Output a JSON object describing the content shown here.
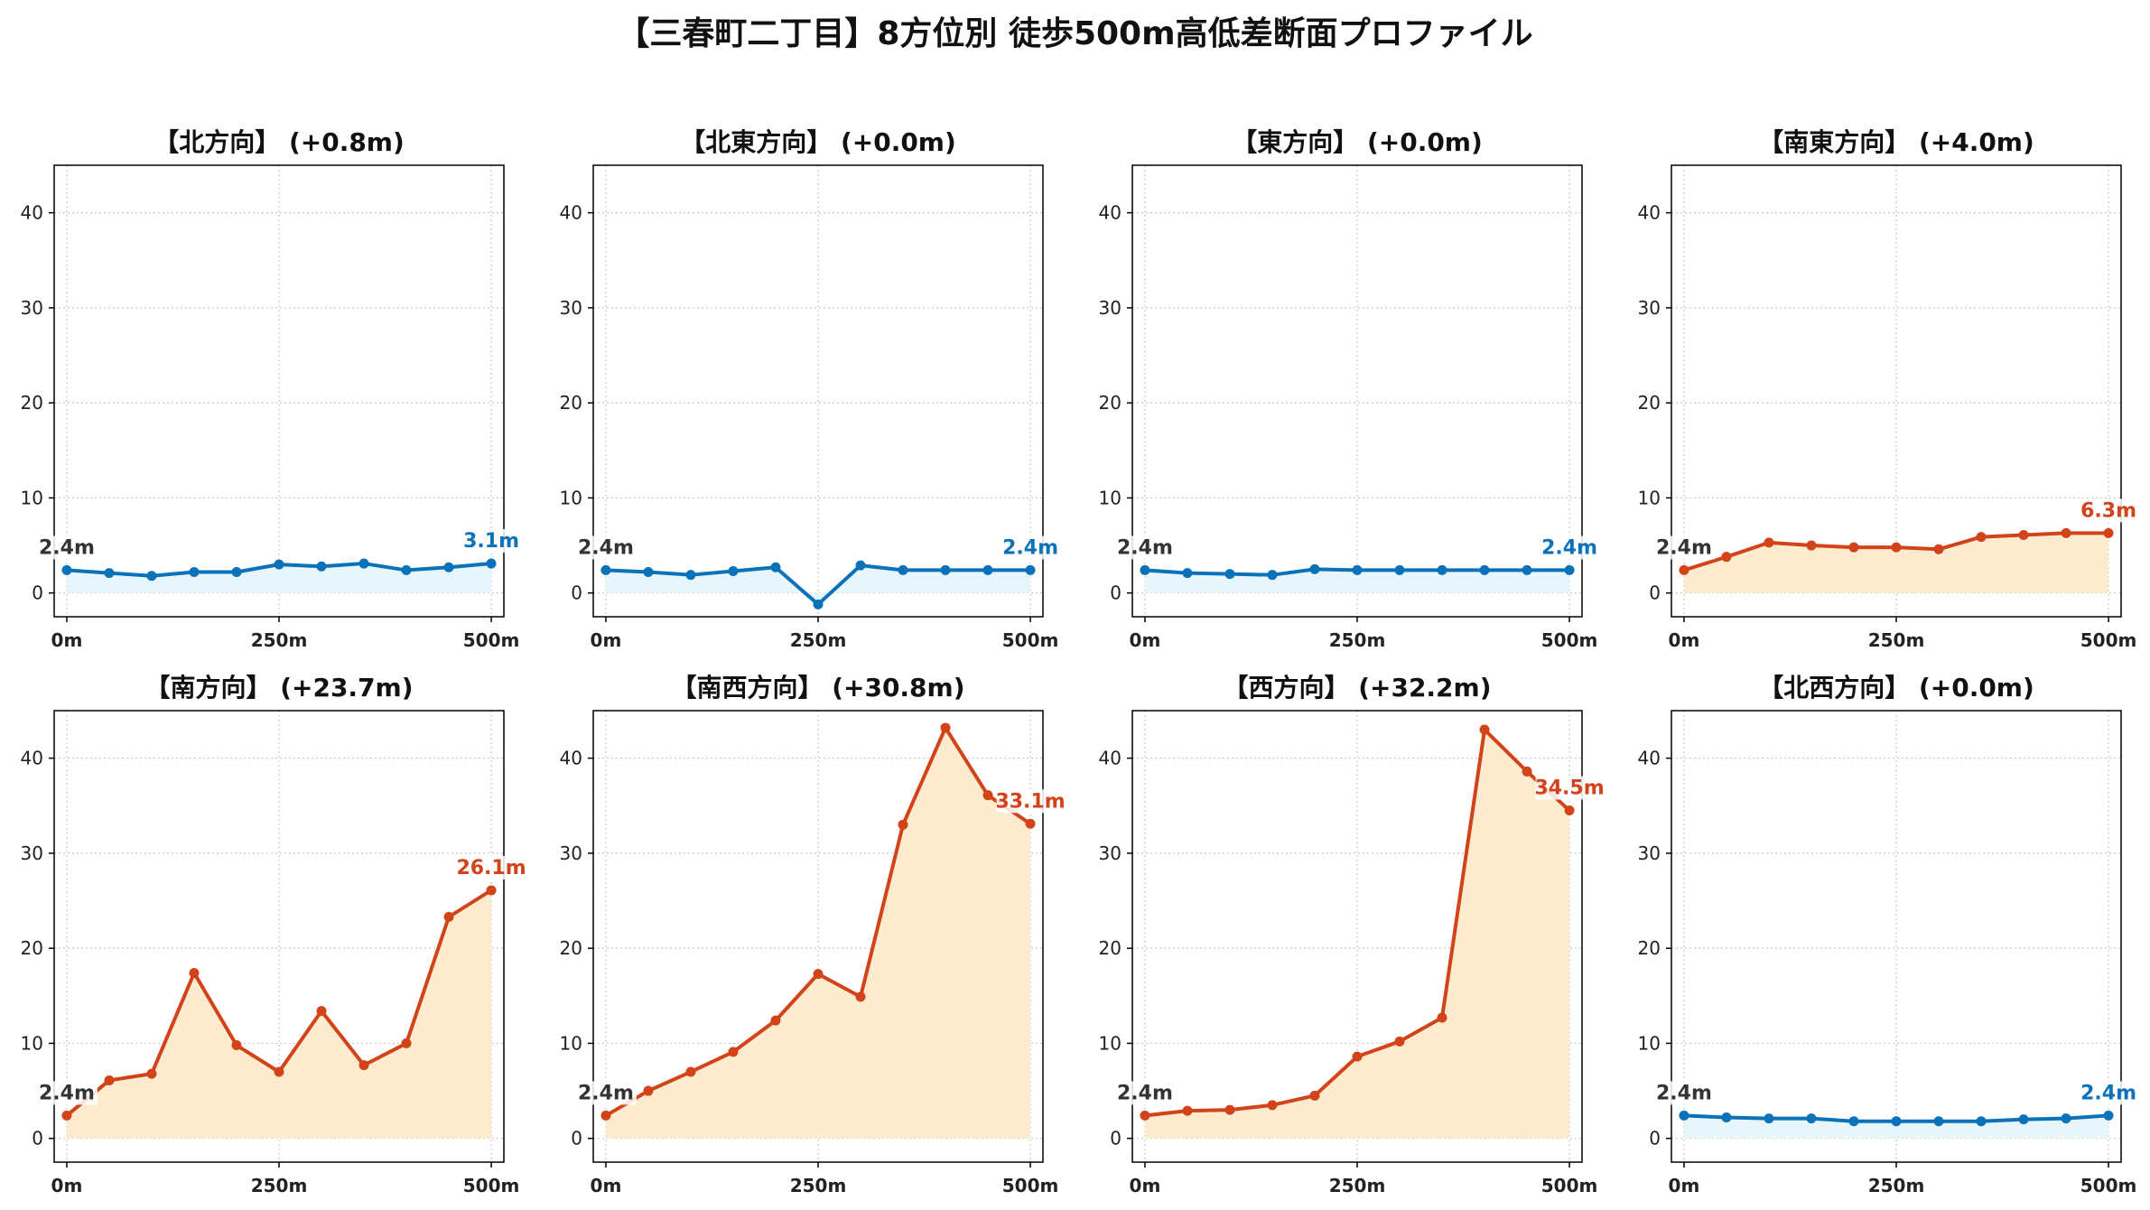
{
  "title": "【三春町二丁目】8方位別 徒歩500m高低差断面プロファイル",
  "colors": {
    "flat_line": "#0b72b9",
    "flat_fill": "#e6f6fb",
    "up_line": "#d2431a",
    "up_fill": "#fdebcf",
    "start_label": "#333333",
    "grid": "#c8c8c8"
  },
  "chart_data": [
    {
      "type": "area",
      "title": "【北方向】 (+0.8m)",
      "trend": "flat",
      "x": [
        0,
        50,
        100,
        150,
        200,
        250,
        300,
        350,
        400,
        450,
        500
      ],
      "y": [
        2.4,
        2.1,
        1.8,
        2.2,
        2.2,
        3.0,
        2.8,
        3.1,
        2.4,
        2.7,
        3.1
      ],
      "start_label": "2.4m",
      "end_label": "3.1m",
      "ylim": [
        -2.5,
        45
      ],
      "yticks": [
        0,
        10,
        20,
        30,
        40
      ],
      "xticks": [
        0,
        250,
        500
      ],
      "xticklabels": [
        "0m",
        "250m",
        "500m"
      ],
      "grid": true
    },
    {
      "type": "area",
      "title": "【北東方向】 (+0.0m)",
      "trend": "flat",
      "x": [
        0,
        50,
        100,
        150,
        200,
        250,
        300,
        350,
        400,
        450,
        500
      ],
      "y": [
        2.4,
        2.2,
        1.9,
        2.3,
        2.7,
        -1.2,
        2.9,
        2.4,
        2.4,
        2.4,
        2.4
      ],
      "start_label": "2.4m",
      "end_label": "2.4m",
      "ylim": [
        -2.5,
        45
      ],
      "yticks": [
        0,
        10,
        20,
        30,
        40
      ],
      "xticks": [
        0,
        250,
        500
      ],
      "xticklabels": [
        "0m",
        "250m",
        "500m"
      ],
      "grid": true
    },
    {
      "type": "area",
      "title": "【東方向】 (+0.0m)",
      "trend": "flat",
      "x": [
        0,
        50,
        100,
        150,
        200,
        250,
        300,
        350,
        400,
        450,
        500
      ],
      "y": [
        2.4,
        2.1,
        2.0,
        1.9,
        2.5,
        2.4,
        2.4,
        2.4,
        2.4,
        2.4,
        2.4
      ],
      "start_label": "2.4m",
      "end_label": "2.4m",
      "ylim": [
        -2.5,
        45
      ],
      "yticks": [
        0,
        10,
        20,
        30,
        40
      ],
      "xticks": [
        0,
        250,
        500
      ],
      "xticklabels": [
        "0m",
        "250m",
        "500m"
      ],
      "grid": true
    },
    {
      "type": "area",
      "title": "【南東方向】 (+4.0m)",
      "trend": "up",
      "x": [
        0,
        50,
        100,
        150,
        200,
        250,
        300,
        350,
        400,
        450,
        500
      ],
      "y": [
        2.4,
        3.8,
        5.3,
        5.0,
        4.8,
        4.8,
        4.6,
        5.9,
        6.1,
        6.3,
        6.3
      ],
      "start_label": "2.4m",
      "end_label": "6.3m",
      "ylim": [
        -2.5,
        45
      ],
      "yticks": [
        0,
        10,
        20,
        30,
        40
      ],
      "xticks": [
        0,
        250,
        500
      ],
      "xticklabels": [
        "0m",
        "250m",
        "500m"
      ],
      "grid": true
    },
    {
      "type": "area",
      "title": "【南方向】 (+23.7m)",
      "trend": "up",
      "x": [
        0,
        50,
        100,
        150,
        200,
        250,
        300,
        350,
        400,
        450,
        500
      ],
      "y": [
        2.4,
        6.1,
        6.8,
        17.4,
        9.8,
        7.0,
        13.4,
        7.7,
        10.0,
        23.3,
        26.1
      ],
      "start_label": "2.4m",
      "end_label": "26.1m",
      "ylim": [
        -2.5,
        45
      ],
      "yticks": [
        0,
        10,
        20,
        30,
        40
      ],
      "xticks": [
        0,
        250,
        500
      ],
      "xticklabels": [
        "0m",
        "250m",
        "500m"
      ],
      "grid": true
    },
    {
      "type": "area",
      "title": "【南西方向】 (+30.8m)",
      "trend": "up",
      "x": [
        0,
        50,
        100,
        150,
        200,
        250,
        300,
        350,
        400,
        450,
        500
      ],
      "y": [
        2.4,
        5.0,
        7.0,
        9.1,
        12.4,
        17.3,
        14.9,
        33.0,
        43.2,
        36.1,
        33.1
      ],
      "start_label": "2.4m",
      "end_label": "33.1m",
      "ylim": [
        -2.5,
        45
      ],
      "yticks": [
        0,
        10,
        20,
        30,
        40
      ],
      "xticks": [
        0,
        250,
        500
      ],
      "xticklabels": [
        "0m",
        "250m",
        "500m"
      ],
      "grid": true
    },
    {
      "type": "area",
      "title": "【西方向】 (+32.2m)",
      "trend": "up",
      "x": [
        0,
        50,
        100,
        150,
        200,
        250,
        300,
        350,
        400,
        450,
        500
      ],
      "y": [
        2.4,
        2.9,
        3.0,
        3.5,
        4.5,
        8.6,
        10.2,
        12.7,
        43.0,
        38.6,
        34.5
      ],
      "start_label": "2.4m",
      "end_label": "34.5m",
      "ylim": [
        -2.5,
        45
      ],
      "yticks": [
        0,
        10,
        20,
        30,
        40
      ],
      "xticks": [
        0,
        250,
        500
      ],
      "xticklabels": [
        "0m",
        "250m",
        "500m"
      ],
      "grid": true
    },
    {
      "type": "area",
      "title": "【北西方向】 (+0.0m)",
      "trend": "flat",
      "x": [
        0,
        50,
        100,
        150,
        200,
        250,
        300,
        350,
        400,
        450,
        500
      ],
      "y": [
        2.4,
        2.2,
        2.1,
        2.1,
        1.8,
        1.8,
        1.8,
        1.8,
        2.0,
        2.1,
        2.4
      ],
      "start_label": "2.4m",
      "end_label": "2.4m",
      "ylim": [
        -2.5,
        45
      ],
      "yticks": [
        0,
        10,
        20,
        30,
        40
      ],
      "xticks": [
        0,
        250,
        500
      ],
      "xticklabels": [
        "0m",
        "250m",
        "500m"
      ],
      "grid": true
    }
  ]
}
